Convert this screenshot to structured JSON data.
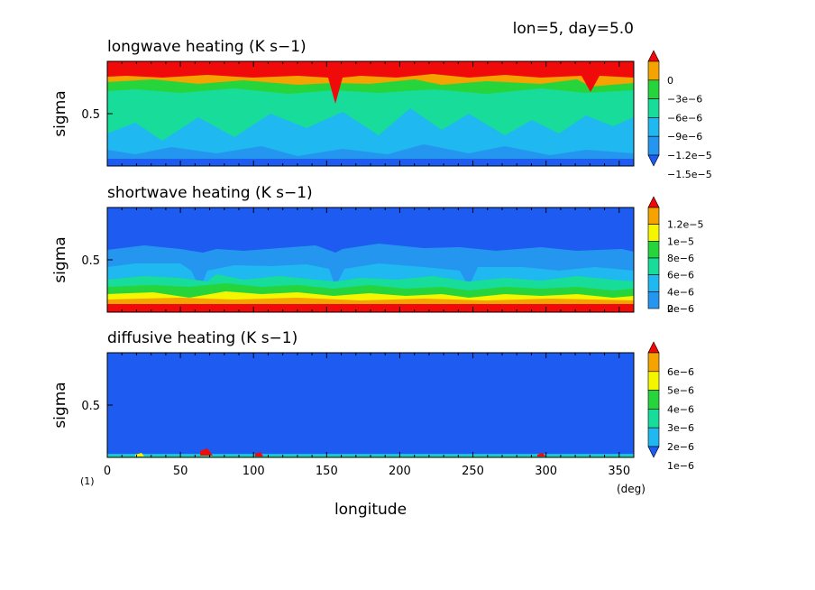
{
  "header": {
    "text": "lon=5, day=5.0"
  },
  "figure_index": "(1)",
  "colors": {
    "deep_blue": "#1e5bf0",
    "blue": "#2596f0",
    "light_blue": "#1fb8f0",
    "teal": "#18dc9a",
    "green": "#26d43b",
    "yellow": "#f5f500",
    "orange": "#f5a300",
    "red": "#f00a0a"
  },
  "chart_data": [
    {
      "type": "heatmap",
      "title": "longwave heating (K s−1)",
      "xlabel": "",
      "ylabel": "sigma",
      "xlim": [
        0,
        360
      ],
      "ylim": [
        1,
        0
      ],
      "ytick_labels": [
        "0.5"
      ],
      "colorbar": {
        "levels": [
          "0",
          "−3e−6",
          "−6e−6",
          "−9e−6",
          "−1.2e−5",
          "−1.5e−5"
        ],
        "colors": [
          "#f00a0a",
          "#f5a300",
          "#26d43b",
          "#18dc9a",
          "#1fb8f0",
          "#2596f0",
          "#1e5bf0"
        ]
      },
      "profile": [
        {
          "sigma_top": 0.0,
          "sigma_bottom": 0.2,
          "level": "> 0"
        },
        {
          "sigma_top": 0.2,
          "sigma_bottom": 0.25,
          "level": "−3e−6 to 0"
        },
        {
          "sigma_top": 0.25,
          "sigma_bottom": 0.3,
          "level": "−6e−6 to −3e−6"
        },
        {
          "sigma_top": 0.3,
          "sigma_bottom": 0.85,
          "level": "−1.5e−5 to −9e−6"
        },
        {
          "sigma_top": 0.85,
          "sigma_bottom": 1.0,
          "level": "< −1.5e−5"
        }
      ]
    },
    {
      "type": "heatmap",
      "title": "shortwave heating (K s−1)",
      "xlabel": "",
      "ylabel": "sigma",
      "xlim": [
        0,
        360
      ],
      "ylim": [
        1,
        0
      ],
      "ytick_labels": [
        "0.5"
      ],
      "colorbar": {
        "levels": [
          "1.2e−5",
          "1e−5",
          "8e−6",
          "6e−6",
          "4e−6",
          "2e−6",
          "0"
        ],
        "colors": [
          "#f00a0a",
          "#f5a300",
          "#f5f500",
          "#26d43b",
          "#18dc9a",
          "#1fb8f0",
          "#2596f0",
          "#1e5bf0"
        ]
      },
      "profile": [
        {
          "sigma_top": 0.0,
          "sigma_bottom": 0.45,
          "level": "< 2e−6"
        },
        {
          "sigma_top": 0.45,
          "sigma_bottom": 0.65,
          "level": "2e−6 to 4e−6"
        },
        {
          "sigma_top": 0.65,
          "sigma_bottom": 0.8,
          "level": "4e−6 to 8e−6"
        },
        {
          "sigma_top": 0.8,
          "sigma_bottom": 0.92,
          "level": "8e−6 to 1.2e−5"
        },
        {
          "sigma_top": 0.92,
          "sigma_bottom": 1.0,
          "level": "> 1.2e−5"
        }
      ]
    },
    {
      "type": "heatmap",
      "title": "diffusive heating (K s−1)",
      "xlabel": "longitude",
      "xunit": "(deg)",
      "ylabel": "sigma",
      "xlim": [
        0,
        360
      ],
      "ylim": [
        1,
        0
      ],
      "xtick_labels": [
        "0",
        "50",
        "100",
        "150",
        "200",
        "250",
        "300",
        "350"
      ],
      "ytick_labels": [
        "0.5"
      ],
      "colorbar": {
        "levels": [
          "6e−6",
          "5e−6",
          "4e−6",
          "3e−6",
          "2e−6",
          "1e−6"
        ],
        "colors": [
          "#f00a0a",
          "#f5a300",
          "#f5f500",
          "#26d43b",
          "#18dc9a",
          "#1fb8f0",
          "#1e5bf0"
        ]
      },
      "profile": [
        {
          "sigma_top": 0.0,
          "sigma_bottom": 0.96,
          "level": "< 1e−6"
        },
        {
          "sigma_top": 0.96,
          "sigma_bottom": 1.0,
          "level": "1e−6 to 3e−6"
        }
      ]
    }
  ]
}
